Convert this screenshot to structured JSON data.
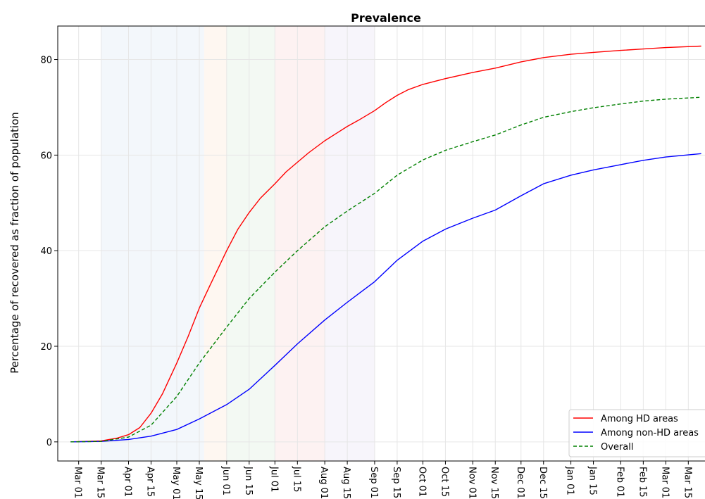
{
  "chart_data": {
    "type": "line",
    "title": "Prevalence",
    "xlabel": "",
    "ylabel": "Percentage of recovered as fraction of population",
    "ylim": [
      -4,
      87
    ],
    "yticks": [
      0,
      20,
      40,
      60,
      80
    ],
    "ytick_labels": [
      "0",
      "20",
      "40",
      "60",
      "80"
    ],
    "xlim": [
      "2020-02-17",
      "2021-03-28"
    ],
    "xtick_dates": [
      "2020-03-01",
      "2020-03-15",
      "2020-04-01",
      "2020-04-15",
      "2020-05-01",
      "2020-05-15",
      "2020-06-01",
      "2020-06-15",
      "2020-07-01",
      "2020-07-15",
      "2020-08-01",
      "2020-08-15",
      "2020-09-01",
      "2020-09-15",
      "2020-10-01",
      "2020-10-15",
      "2020-11-01",
      "2020-11-15",
      "2020-12-01",
      "2020-12-15",
      "2021-01-01",
      "2021-01-15",
      "2021-02-01",
      "2021-02-15",
      "2021-03-01",
      "2021-03-15"
    ],
    "xtick_labels": [
      "Mar 01",
      "Mar 15",
      "Apr 01",
      "Apr 15",
      "May 01",
      "May 15",
      "Jun 01",
      "Jun 15",
      "Jul 01",
      "Jul 15",
      "Aug 01",
      "Aug 15",
      "Sep 01",
      "Sep 15",
      "Oct 01",
      "Oct 15",
      "Nov 01",
      "Nov 15",
      "Dec 01",
      "Dec 15",
      "Jan 01",
      "Jan 15",
      "Feb 01",
      "Feb 15",
      "Mar 01",
      "Mar 15"
    ],
    "grid": true,
    "legend_position": "bottom-right",
    "shaded_periods": [
      {
        "start": "2020-03-15",
        "end": "2020-05-18",
        "color": "#d6e6f3"
      },
      {
        "start": "2020-05-18",
        "end": "2020-06-01",
        "color": "#fde3cf"
      },
      {
        "start": "2020-06-01",
        "end": "2020-07-01",
        "color": "#d8ecd6"
      },
      {
        "start": "2020-07-01",
        "end": "2020-08-01",
        "color": "#f9d3d3"
      },
      {
        "start": "2020-08-01",
        "end": "2020-09-01",
        "color": "#e6dff2"
      }
    ],
    "series": [
      {
        "name": "Among HD areas",
        "color": "#ff0000",
        "dash": "solid",
        "points": [
          [
            "2020-02-25",
            0
          ],
          [
            "2020-03-15",
            0.2
          ],
          [
            "2020-03-25",
            0.8
          ],
          [
            "2020-04-01",
            1.5
          ],
          [
            "2020-04-08",
            3
          ],
          [
            "2020-04-15",
            6
          ],
          [
            "2020-04-22",
            10
          ],
          [
            "2020-05-01",
            16.5
          ],
          [
            "2020-05-08",
            22
          ],
          [
            "2020-05-15",
            28
          ],
          [
            "2020-05-22",
            33
          ],
          [
            "2020-06-01",
            40
          ],
          [
            "2020-06-08",
            44.5
          ],
          [
            "2020-06-15",
            48
          ],
          [
            "2020-06-22",
            51
          ],
          [
            "2020-07-01",
            54
          ],
          [
            "2020-07-08",
            56.5
          ],
          [
            "2020-07-15",
            58.5
          ],
          [
            "2020-07-22",
            60.5
          ],
          [
            "2020-08-01",
            63
          ],
          [
            "2020-08-08",
            64.5
          ],
          [
            "2020-08-15",
            66
          ],
          [
            "2020-08-22",
            67.3
          ],
          [
            "2020-09-01",
            69.3
          ],
          [
            "2020-09-08",
            71
          ],
          [
            "2020-09-15",
            72.5
          ],
          [
            "2020-09-22",
            73.7
          ],
          [
            "2020-10-01",
            74.8
          ],
          [
            "2020-10-15",
            76
          ],
          [
            "2020-11-01",
            77.3
          ],
          [
            "2020-11-15",
            78.2
          ],
          [
            "2020-12-01",
            79.5
          ],
          [
            "2020-12-15",
            80.4
          ],
          [
            "2021-01-01",
            81.1
          ],
          [
            "2021-01-15",
            81.5
          ],
          [
            "2021-02-01",
            81.9
          ],
          [
            "2021-02-15",
            82.2
          ],
          [
            "2021-03-01",
            82.5
          ],
          [
            "2021-03-23",
            82.8
          ]
        ]
      },
      {
        "name": "Among non-HD areas",
        "color": "#0000ff",
        "dash": "solid",
        "points": [
          [
            "2020-02-25",
            0
          ],
          [
            "2020-03-15",
            0.1
          ],
          [
            "2020-04-01",
            0.5
          ],
          [
            "2020-04-15",
            1.2
          ],
          [
            "2020-05-01",
            2.6
          ],
          [
            "2020-05-15",
            4.8
          ],
          [
            "2020-06-01",
            7.8
          ],
          [
            "2020-06-15",
            11
          ],
          [
            "2020-07-01",
            16
          ],
          [
            "2020-07-15",
            20.5
          ],
          [
            "2020-08-01",
            25.5
          ],
          [
            "2020-08-15",
            29.2
          ],
          [
            "2020-09-01",
            33.5
          ],
          [
            "2020-09-15",
            38
          ],
          [
            "2020-10-01",
            42
          ],
          [
            "2020-10-15",
            44.5
          ],
          [
            "2020-11-01",
            46.8
          ],
          [
            "2020-11-15",
            48.5
          ],
          [
            "2020-12-01",
            51.5
          ],
          [
            "2020-12-15",
            54
          ],
          [
            "2021-01-01",
            55.8
          ],
          [
            "2021-01-15",
            56.9
          ],
          [
            "2021-02-01",
            58
          ],
          [
            "2021-02-15",
            58.9
          ],
          [
            "2021-03-01",
            59.6
          ],
          [
            "2021-03-23",
            60.3
          ]
        ]
      },
      {
        "name": "Overall",
        "color": "#008000",
        "dash": "dashed",
        "points": [
          [
            "2020-02-25",
            0
          ],
          [
            "2020-03-15",
            0.1
          ],
          [
            "2020-04-01",
            1
          ],
          [
            "2020-04-15",
            3.5
          ],
          [
            "2020-05-01",
            9.5
          ],
          [
            "2020-05-15",
            16.5
          ],
          [
            "2020-06-01",
            24
          ],
          [
            "2020-06-15",
            30
          ],
          [
            "2020-07-01",
            35.5
          ],
          [
            "2020-07-15",
            40
          ],
          [
            "2020-08-01",
            45
          ],
          [
            "2020-08-15",
            48.3
          ],
          [
            "2020-09-01",
            52
          ],
          [
            "2020-09-15",
            55.8
          ],
          [
            "2020-10-01",
            59
          ],
          [
            "2020-10-15",
            61
          ],
          [
            "2020-11-01",
            62.8
          ],
          [
            "2020-11-15",
            64.2
          ],
          [
            "2020-12-01",
            66.3
          ],
          [
            "2020-12-15",
            67.9
          ],
          [
            "2021-01-01",
            69.1
          ],
          [
            "2021-01-15",
            69.9
          ],
          [
            "2021-02-01",
            70.7
          ],
          [
            "2021-02-15",
            71.3
          ],
          [
            "2021-03-01",
            71.7
          ],
          [
            "2021-03-23",
            72.1
          ]
        ]
      }
    ]
  }
}
